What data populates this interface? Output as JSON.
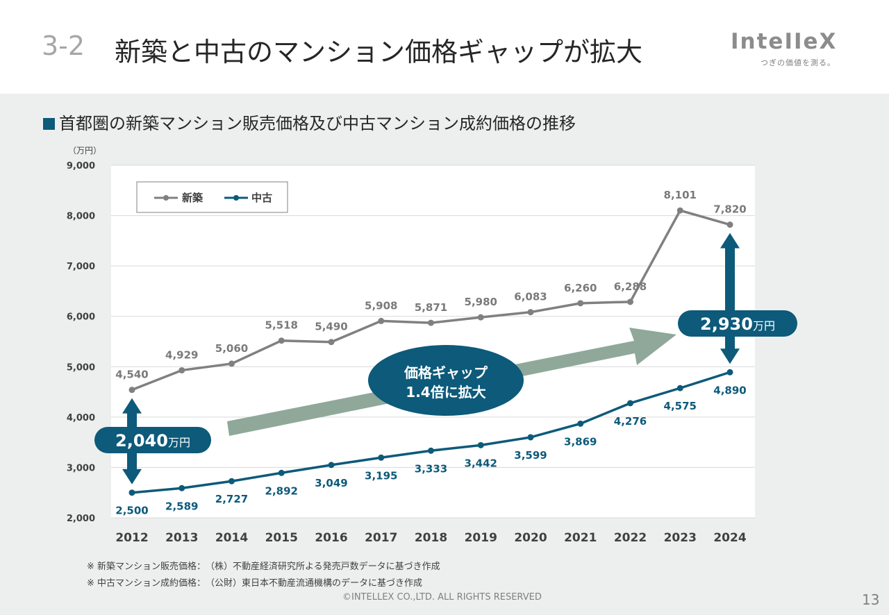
{
  "header": {
    "section_number": "3-2",
    "title": "新築と中古のマンション価格ギャップが拡大",
    "logo": "InteIIeX",
    "logo_tagline": "つぎの価値を測る。"
  },
  "subtitle": "首都圏の新築マンション販売価格及び中古マンション成約価格の推移",
  "chart_data": {
    "type": "line",
    "unit_label": "（万円）",
    "x": [
      "2012",
      "2013",
      "2014",
      "2015",
      "2016",
      "2017",
      "2018",
      "2019",
      "2020",
      "2021",
      "2022",
      "2023",
      "2024"
    ],
    "ylim": [
      2000,
      9000
    ],
    "yticks": [
      2000,
      3000,
      4000,
      5000,
      6000,
      7000,
      8000,
      9000
    ],
    "ytick_labels": [
      "2,000",
      "3,000",
      "4,000",
      "5,000",
      "6,000",
      "7,000",
      "8,000",
      "9,000"
    ],
    "grid": true,
    "legend_position": "top-left",
    "series": [
      {
        "name": "新築",
        "color": "#808080",
        "values": [
          4540,
          4929,
          5060,
          5518,
          5490,
          5908,
          5871,
          5980,
          6083,
          6260,
          6288,
          8101,
          7820
        ],
        "labels": [
          "4,540",
          "4,929",
          "5,060",
          "5,518",
          "5,490",
          "5,908",
          "5,871",
          "5,980",
          "6,083",
          "6,260",
          "6,288",
          "8,101",
          "7,820"
        ]
      },
      {
        "name": "中古",
        "color": "#0d5a7a",
        "values": [
          2500,
          2589,
          2727,
          2892,
          3049,
          3195,
          3333,
          3442,
          3599,
          3869,
          4276,
          4575,
          4890
        ],
        "labels": [
          "2,500",
          "2,589",
          "2,727",
          "2,892",
          "3,049",
          "3,195",
          "3,333",
          "3,442",
          "3,599",
          "3,869",
          "4,276",
          "4,575",
          "4,890"
        ]
      }
    ],
    "annotations": {
      "gap_2012": {
        "value": "2,040",
        "unit": "万円"
      },
      "gap_2024": {
        "value": "2,930",
        "unit": "万円"
      },
      "bubble_line1": "価格ギャップ",
      "bubble_line2": "1.4倍に拡大"
    }
  },
  "notes": [
    "※ 新築マンション販売価格：　（株）不動産経済研究所よる発売戸数データに基づき作成",
    "※ 中古マンション成約価格：　（公財）東日本不動産流通機構のデータに基づき作成"
  ],
  "footer": {
    "copyright": "©INTELLEX CO.,LTD. ALL RIGHTS RESERVED",
    "page_number": "13"
  },
  "colors": {
    "accent": "#0d5a7a",
    "new_line": "#808080",
    "trend_arrow": "#8fa899",
    "panel_bg": "#edefee"
  }
}
